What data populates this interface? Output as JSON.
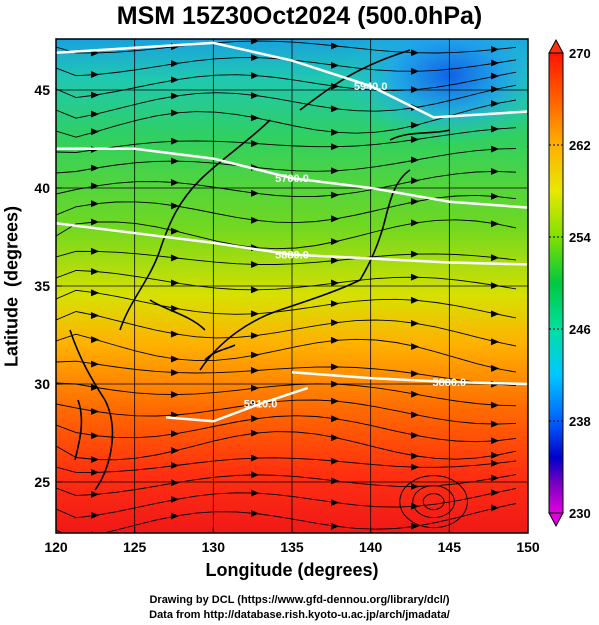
{
  "title": "MSM 15Z30Oct2024 (500.0hPa)",
  "xaxis": {
    "label": "Longitude (degrees)",
    "range": [
      120,
      150
    ],
    "ticks": [
      "120",
      "125",
      "130",
      "135",
      "140",
      "145",
      "150"
    ]
  },
  "yaxis": {
    "label": "Latitude  (degrees)",
    "range": [
      22.4,
      47.6
    ],
    "ticks": [
      "25",
      "30",
      "35",
      "40",
      "45"
    ]
  },
  "colorbar": {
    "range": [
      230,
      270
    ],
    "ticks": [
      "270",
      "262",
      "254",
      "246",
      "238",
      "230"
    ],
    "colors": [
      "#e000e0",
      "#8000c0",
      "#0000c8",
      "#0060ff",
      "#00c8ff",
      "#00e0a0",
      "#00c840",
      "#80e000",
      "#e8e800",
      "#ffb000",
      "#ff6000",
      "#ff1400"
    ]
  },
  "contours": [
    {
      "label": "5940.0",
      "lat_at_lon": [
        [
          120,
          46.9
        ],
        [
          130,
          47.4
        ],
        [
          135,
          46.5
        ],
        [
          140,
          45.2
        ],
        [
          144,
          43.6
        ],
        [
          150,
          43.9
        ]
      ]
    },
    {
      "label": "5700.0",
      "lat_at_lon": [
        [
          120,
          42.0
        ],
        [
          125,
          42.0
        ],
        [
          130,
          41.5
        ],
        [
          135,
          40.5
        ],
        [
          140,
          40.0
        ],
        [
          145,
          39.3
        ],
        [
          150,
          39.0
        ]
      ]
    },
    {
      "label": "5880.0",
      "lat_at_lon": [
        [
          120,
          38.2
        ],
        [
          125,
          37.7
        ],
        [
          130,
          37.2
        ],
        [
          135,
          36.6
        ],
        [
          140,
          36.4
        ],
        [
          145,
          36.2
        ],
        [
          150,
          36.1
        ]
      ]
    },
    {
      "label": "5880.0",
      "lat_at_lon": [
        [
          135,
          30.6
        ],
        [
          140,
          30.3
        ],
        [
          145,
          30.1
        ],
        [
          150,
          30.0
        ]
      ]
    },
    {
      "label": "5910.0",
      "lat_at_lon": [
        [
          127,
          28.3
        ],
        [
          130,
          28.1
        ],
        [
          133,
          29.0
        ],
        [
          136,
          29.8
        ]
      ]
    }
  ],
  "credits": {
    "line1": "Drawing by DCL (https://www.gfd-dennou.org/library/dcl/)",
    "line2": "Data from http://database.rish.kyoto-u.ac.jp/arch/jmadata/"
  }
}
